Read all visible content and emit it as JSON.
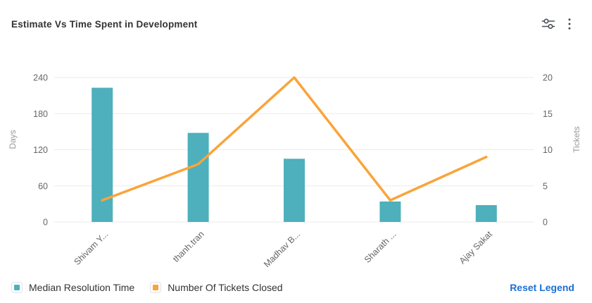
{
  "header": {
    "title": "Estimate Vs Time Spent in Development"
  },
  "chart_data": {
    "type": "bar+line",
    "categories": [
      "Shivam Y...",
      "thanh.tran",
      "Madhav B...",
      "Sharath ...",
      "Ajay Sakat"
    ],
    "series": [
      {
        "name": "Median Resolution Time",
        "type": "bar",
        "axis": "left",
        "color": "#4db0bc",
        "values": [
          223,
          148,
          105,
          34,
          28
        ]
      },
      {
        "name": "Number Of Tickets Closed",
        "type": "line",
        "axis": "right",
        "color": "#faa43a",
        "values": [
          3,
          8,
          20,
          3,
          9
        ]
      }
    ],
    "left_axis": {
      "name": "Days",
      "ticks": [
        0,
        60,
        120,
        180,
        240
      ],
      "max": 240
    },
    "right_axis": {
      "name": "Tickets",
      "ticks": [
        0,
        5,
        10,
        15,
        20
      ],
      "max": 20
    },
    "grid": true,
    "legend_position": "bottom",
    "title": "Estimate Vs Time Spent in Development"
  },
  "legend": {
    "items": [
      {
        "label": "Median Resolution Time",
        "color": "#4db0bc"
      },
      {
        "label": "Number Of Tickets Closed",
        "color": "#faa43a"
      }
    ],
    "reset_label": "Reset Legend"
  }
}
